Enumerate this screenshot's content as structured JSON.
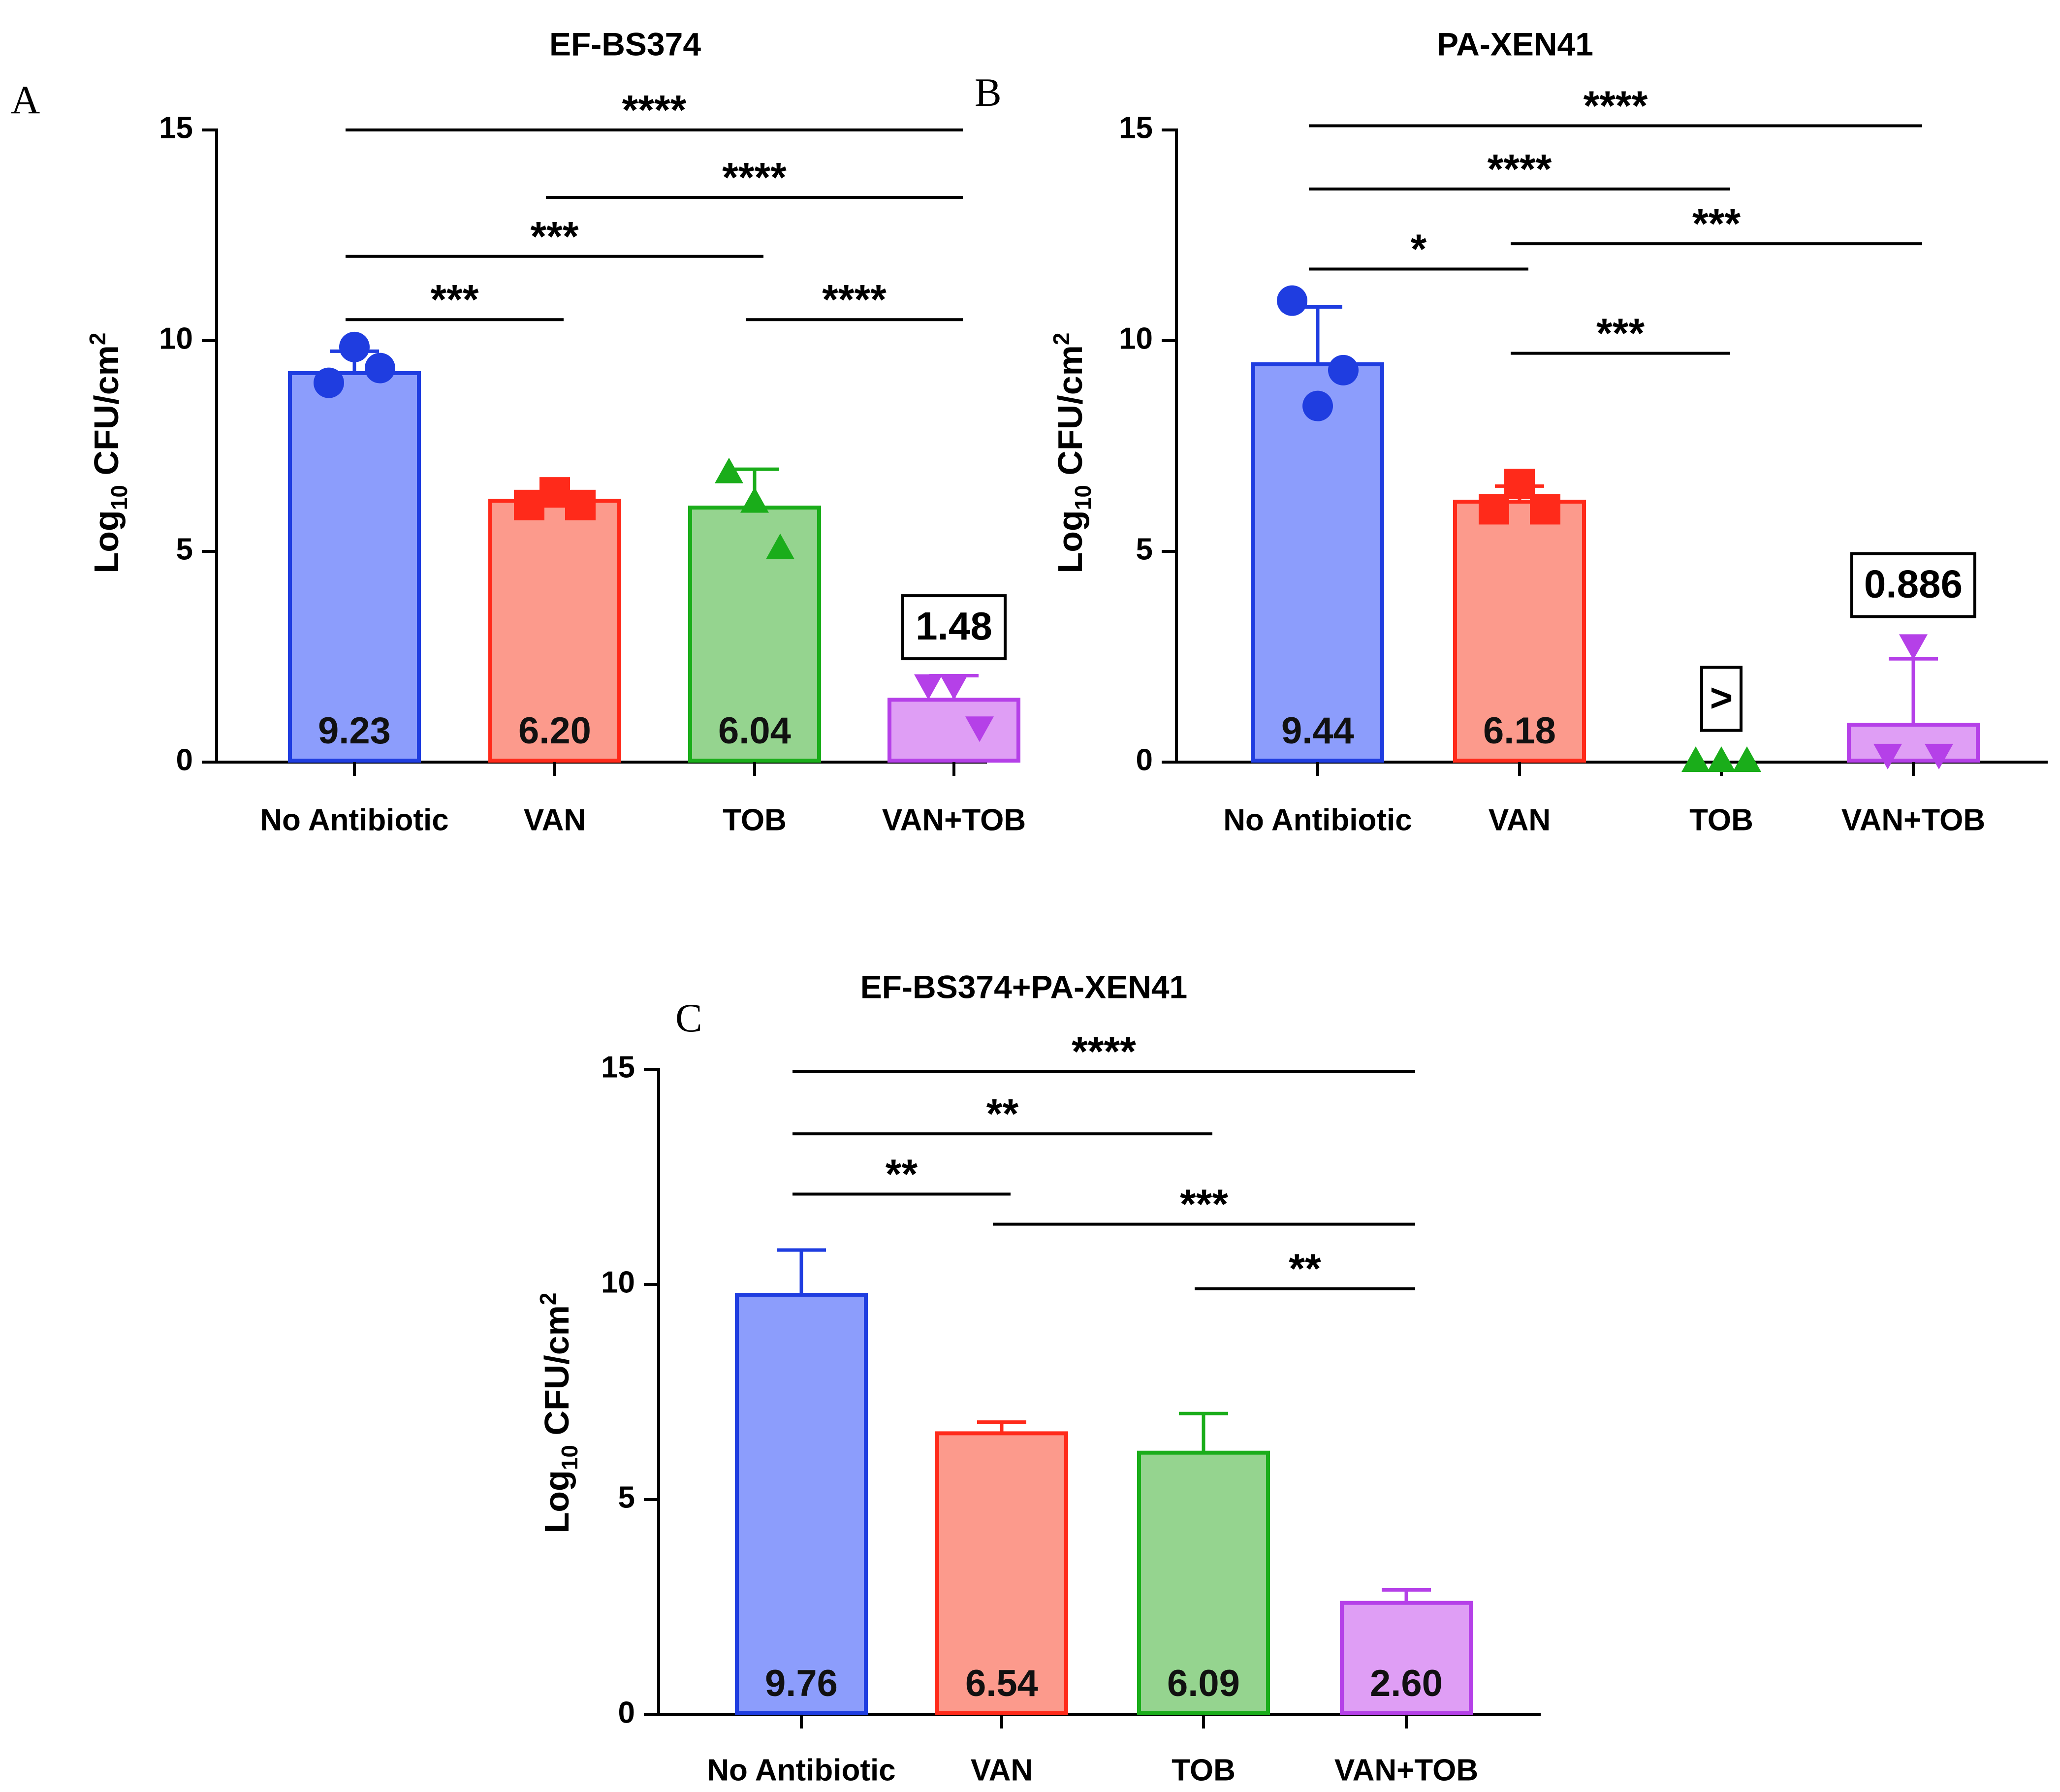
{
  "colors": {
    "blue": "#1f3de0",
    "blue_fill": "#8c9dfc",
    "red": "#ff2a1a",
    "red_fill": "#fc9a8c",
    "green": "#1aad1a",
    "green_fill": "#95d48f",
    "purple": "#b540e8",
    "purple_fill": "#df9ef5",
    "black": "#000000"
  },
  "chart_data": [
    {
      "panel": "A",
      "type": "bar",
      "title": "EF-BS374",
      "ylabel": "Log10 CFU/cm2",
      "ylabel_parts": {
        "main": "Log",
        "sub": "10",
        "unit": " CFU/cm",
        "sup": "2"
      },
      "ylim": [
        0,
        15
      ],
      "yticks": [
        0,
        5,
        10,
        15
      ],
      "categories": [
        "No Antibiotic",
        "VAN",
        "TOB",
        "VAN+TOB"
      ],
      "values": [
        9.23,
        6.2,
        6.04,
        1.48
      ],
      "value_labels": [
        "9.23",
        "6.20",
        "6.04",
        ""
      ],
      "error_upper": [
        9.75,
        6.35,
        6.95,
        2.05
      ],
      "points": [
        {
          "marker": "circle",
          "values": [
            9.0,
            9.85,
            9.35
          ]
        },
        {
          "marker": "square",
          "values": [
            6.1,
            6.4,
            6.1
          ]
        },
        {
          "marker": "triangle-up",
          "values": [
            6.85,
            6.15,
            5.05
          ]
        },
        {
          "marker": "triangle-down",
          "values": [
            1.85,
            1.85,
            0.85
          ]
        }
      ],
      "boxes": [
        {
          "category": 3,
          "text": "1.48",
          "y": 3.2
        }
      ],
      "significance": [
        {
          "from": 0,
          "to": 3,
          "label": "****",
          "y": 15.0
        },
        {
          "from": 1,
          "to": 3,
          "label": "****",
          "y": 13.4
        },
        {
          "from": 0,
          "to": 2,
          "label": "***",
          "y": 12.0
        },
        {
          "from": 0,
          "to": 1,
          "label": "***",
          "y": 10.5
        },
        {
          "from": 2,
          "to": 3,
          "label": "****",
          "y": 10.5
        }
      ]
    },
    {
      "panel": "B",
      "type": "bar",
      "title": "PA-XEN41",
      "ylabel": "Log10 CFU/cm2",
      "ylabel_parts": {
        "main": "Log",
        "sub": "10",
        "unit": " CFU/cm",
        "sup": "2"
      },
      "ylim": [
        0,
        15
      ],
      "yticks": [
        0,
        5,
        10,
        15
      ],
      "categories": [
        "No Antibiotic",
        "VAN",
        "TOB",
        "VAN+TOB"
      ],
      "values": [
        9.44,
        6.18,
        0,
        0.886
      ],
      "value_labels": [
        "9.44",
        "6.18",
        "",
        ""
      ],
      "error_upper": [
        10.8,
        6.55,
        0,
        2.45
      ],
      "points": [
        {
          "marker": "circle",
          "values": [
            10.95,
            8.45,
            9.3
          ]
        },
        {
          "marker": "square",
          "values": [
            6.0,
            6.6,
            6.0
          ]
        },
        {
          "marker": "triangle-up",
          "values": [
            0,
            0,
            0
          ]
        },
        {
          "marker": "triangle-down",
          "values": [
            0.2,
            2.8,
            0.2
          ]
        }
      ],
      "boxes": [
        {
          "category": 2,
          "text": ">",
          "y": 1.5
        },
        {
          "category": 3,
          "text": "0.886",
          "y": 4.2
        }
      ],
      "significance": [
        {
          "from": 0,
          "to": 3,
          "label": "****",
          "y": 15.1
        },
        {
          "from": 0,
          "to": 2,
          "label": "****",
          "y": 13.6
        },
        {
          "from": 0,
          "to": 1,
          "label": "*",
          "y": 11.7
        },
        {
          "from": 1,
          "to": 3,
          "label": "***",
          "y": 12.3
        },
        {
          "from": 1,
          "to": 2,
          "label": "***",
          "y": 9.7
        }
      ]
    },
    {
      "panel": "C",
      "type": "bar",
      "title": "EF-BS374+PA-XEN41",
      "ylabel": "Log10 CFU/cm2",
      "ylabel_parts": {
        "main": "Log",
        "sub": "10",
        "unit": " CFU/cm",
        "sup": "2"
      },
      "ylim": [
        0,
        15
      ],
      "yticks": [
        0,
        5,
        10,
        15
      ],
      "categories": [
        "No Antibiotic",
        "VAN",
        "TOB",
        "VAN+TOB"
      ],
      "values": [
        9.76,
        6.54,
        6.09,
        2.6
      ],
      "value_labels": [
        "9.76",
        "6.54",
        "6.09",
        "2.60"
      ],
      "error_upper": [
        10.8,
        6.8,
        7.0,
        2.9
      ],
      "points": [],
      "boxes": [],
      "significance": [
        {
          "from": 0,
          "to": 3,
          "label": "****",
          "y": 14.95
        },
        {
          "from": 0,
          "to": 2,
          "label": "**",
          "y": 13.5
        },
        {
          "from": 0,
          "to": 1,
          "label": "**",
          "y": 12.1
        },
        {
          "from": 1,
          "to": 3,
          "label": "***",
          "y": 11.4
        },
        {
          "from": 2,
          "to": 3,
          "label": "**",
          "y": 9.9
        }
      ]
    }
  ]
}
